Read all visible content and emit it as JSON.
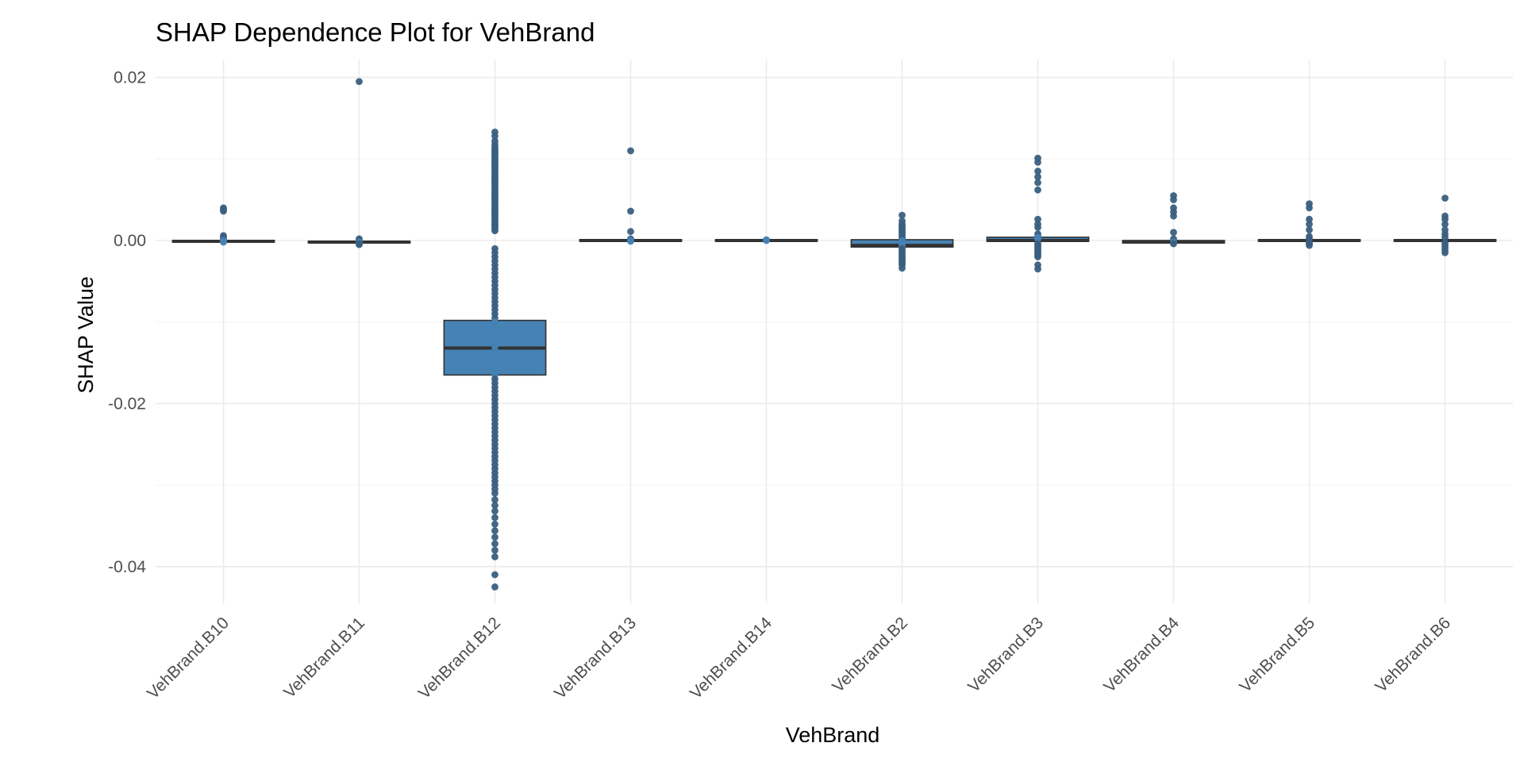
{
  "chart_data": {
    "type": "box",
    "title": "SHAP Dependence Plot for VehBrand",
    "xlabel": "VehBrand",
    "ylabel": "SHAP Value",
    "ylim": [
      -0.0445,
      0.0222
    ],
    "y_ticks": [
      0.02,
      0.0,
      -0.02,
      -0.04
    ],
    "y_tick_labels": [
      "0.02",
      "0.00",
      "-0.02",
      "-0.04"
    ],
    "grid": true,
    "legend": "none",
    "colors": {
      "fill": "#4682B4",
      "outline": "#333333",
      "point": "#3A5F7F",
      "grid": "#EBEBEB"
    },
    "categories": [
      "VehBrand.B10",
      "VehBrand.B11",
      "VehBrand.B12",
      "VehBrand.B13",
      "VehBrand.B14",
      "VehBrand.B2",
      "VehBrand.B3",
      "VehBrand.B4",
      "VehBrand.B5",
      "VehBrand.B6"
    ],
    "boxes": [
      {
        "q1": -0.0002,
        "median": -0.0001,
        "q3": 0.0,
        "whisker_low": -0.0002,
        "whisker_high": 0.0
      },
      {
        "q1": -0.0003,
        "median": -0.0002,
        "q3": -0.0001,
        "whisker_low": -0.0003,
        "whisker_high": -0.0001
      },
      {
        "q1": -0.0165,
        "median": -0.0132,
        "q3": -0.0098,
        "whisker_low": -0.0265,
        "whisker_high": -0.001
      },
      {
        "q1": -0.0001,
        "median": 0.0,
        "q3": 0.0001,
        "whisker_low": -0.0001,
        "whisker_high": 0.0001
      },
      {
        "q1": -0.0001,
        "median": 0.0,
        "q3": 0.0001,
        "whisker_low": -0.0001,
        "whisker_high": 0.0001
      },
      {
        "q1": -0.0008,
        "median": -0.0006,
        "q3": 0.0001,
        "whisker_low": -0.0018,
        "whisker_high": 0.0011
      },
      {
        "q1": -0.0001,
        "median": 0.0,
        "q3": 0.0004,
        "whisker_low": -0.0005,
        "whisker_high": 0.0009
      },
      {
        "q1": -0.0003,
        "median": -0.0002,
        "q3": 0.0,
        "whisker_low": -0.0004,
        "whisker_high": 0.0003
      },
      {
        "q1": -0.0001,
        "median": 0.0,
        "q3": 0.0001,
        "whisker_low": -0.0002,
        "whisker_high": 0.0002
      },
      {
        "q1": -0.0001,
        "median": 0.0,
        "q3": 0.0001,
        "whisker_low": -0.0002,
        "whisker_high": 0.0002
      }
    ],
    "points": [
      [
        0.004,
        0.0038,
        0.0036,
        0.0006,
        0.0004,
        0.0002,
        0.0,
        -0.0001,
        -0.0002
      ],
      [
        0.0195,
        0.0002,
        0.0,
        -0.0002,
        -0.0003,
        -0.0004,
        -0.0005
      ],
      [
        0.0133,
        0.0128,
        0.0122,
        0.0118,
        0.0115,
        0.0112,
        0.011,
        0.0108,
        0.0106,
        0.0104,
        0.0102,
        0.01,
        0.0098,
        0.0096,
        0.0094,
        0.0092,
        0.009,
        0.0088,
        0.0086,
        0.0084,
        0.0082,
        0.008,
        0.0078,
        0.0076,
        0.0074,
        0.0072,
        0.007,
        0.0068,
        0.0066,
        0.0064,
        0.0062,
        0.006,
        0.0058,
        0.0056,
        0.0054,
        0.0052,
        0.005,
        0.0048,
        0.0046,
        0.0044,
        0.0042,
        0.004,
        0.0038,
        0.0036,
        0.0034,
        0.0032,
        0.003,
        0.0028,
        0.0026,
        0.0024,
        0.0022,
        0.002,
        0.0018,
        0.0016,
        0.0014,
        0.0012,
        -0.001,
        -0.0015,
        -0.002,
        -0.0025,
        -0.003,
        -0.0035,
        -0.004,
        -0.0045,
        -0.005,
        -0.0055,
        -0.006,
        -0.0065,
        -0.007,
        -0.0075,
        -0.008,
        -0.0085,
        -0.009,
        -0.0095,
        -0.01,
        -0.0105,
        -0.011,
        -0.0115,
        -0.012,
        -0.0125,
        -0.013,
        -0.0135,
        -0.014,
        -0.0145,
        -0.015,
        -0.0155,
        -0.016,
        -0.0165,
        -0.017,
        -0.0175,
        -0.018,
        -0.0185,
        -0.019,
        -0.0195,
        -0.02,
        -0.0205,
        -0.021,
        -0.0215,
        -0.022,
        -0.0225,
        -0.023,
        -0.0235,
        -0.024,
        -0.0245,
        -0.025,
        -0.0255,
        -0.026,
        -0.0265,
        -0.027,
        -0.0275,
        -0.028,
        -0.0285,
        -0.029,
        -0.0295,
        -0.03,
        -0.0305,
        -0.031,
        -0.0318,
        -0.0325,
        -0.0332,
        -0.034,
        -0.0348,
        -0.0356,
        -0.0364,
        -0.0372,
        -0.038,
        -0.0388,
        -0.041,
        -0.0425
      ],
      [
        0.011,
        0.0036,
        0.0011,
        0.0002,
        0.0,
        -0.0001
      ],
      [
        0.0001,
        0.0
      ],
      [
        0.0031,
        0.0024,
        0.002,
        0.0018,
        0.0016,
        0.0014,
        0.0012,
        0.001,
        0.0008,
        0.0006,
        0.0004,
        0.0002,
        0.0,
        -0.0002,
        -0.0004,
        -0.0006,
        -0.0008,
        -0.001,
        -0.0012,
        -0.0014,
        -0.0016,
        -0.0018,
        -0.002,
        -0.0022,
        -0.0024,
        -0.0026,
        -0.0028,
        -0.003,
        -0.0034
      ],
      [
        0.0101,
        0.0096,
        0.0085,
        0.0078,
        0.0071,
        0.0062,
        0.0026,
        0.002,
        0.0016,
        0.0008,
        0.0006,
        0.0004,
        0.0002,
        -0.0004,
        -0.0006,
        -0.0008,
        -0.001,
        -0.0012,
        -0.0014,
        -0.0016,
        -0.0018,
        -0.002,
        -0.003,
        -0.0035
      ],
      [
        0.0055,
        0.005,
        0.004,
        0.0035,
        0.003,
        0.001,
        0.0002,
        -0.0002,
        -0.0004
      ],
      [
        0.0045,
        0.004,
        0.0026,
        0.002,
        0.0013,
        0.0005,
        0.0002,
        -0.0002,
        -0.0004,
        -0.0006
      ],
      [
        0.0052,
        0.003,
        0.0026,
        0.002,
        0.0013,
        0.0008,
        0.0004,
        -0.0003,
        -0.0006,
        -0.0009,
        -0.0012,
        -0.0015
      ]
    ]
  }
}
